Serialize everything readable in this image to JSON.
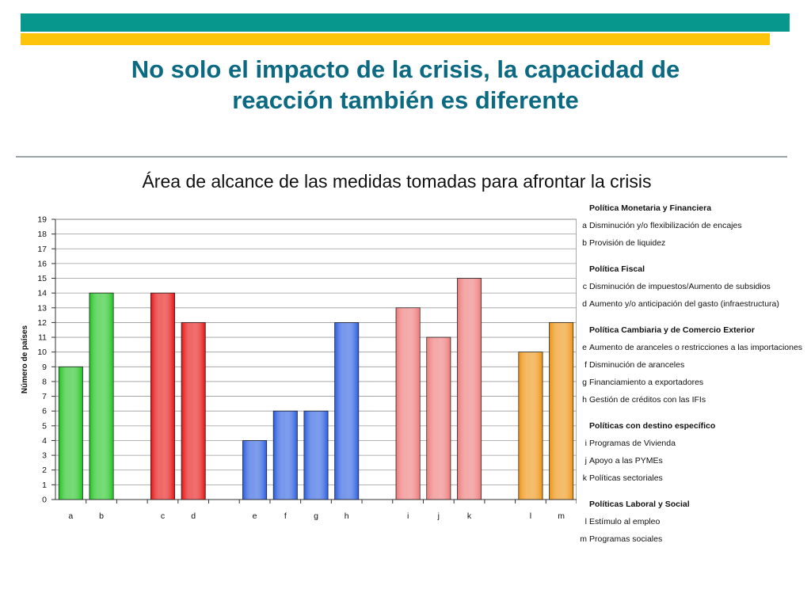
{
  "slide_title": "No solo el impacto de la crisis, la capacidad de reacción también es diferente",
  "chart_data": {
    "type": "bar",
    "title": "Área de alcance de las medidas tomadas para afrontar la crisis",
    "ylabel": "Número de países",
    "xlabel": "",
    "ylim": [
      0,
      19
    ],
    "yticks": [
      "0",
      "1",
      "2",
      "3",
      "4",
      "5",
      "6",
      "7",
      "8",
      "9",
      "10",
      "11",
      "12",
      "13",
      "14",
      "15",
      "16",
      "17",
      "18",
      "19"
    ],
    "grid": true,
    "categories": [
      "a",
      "b",
      "",
      "c",
      "d",
      "",
      "e",
      "f",
      "g",
      "h",
      "",
      "i",
      "j",
      "k",
      "",
      "l",
      "m"
    ],
    "values": [
      9,
      14,
      null,
      14,
      12,
      null,
      4,
      6,
      6,
      12,
      null,
      13,
      11,
      15,
      null,
      10,
      12
    ],
    "bar_colors": [
      "#22c422",
      "#22c422",
      null,
      "#e61414",
      "#e61414",
      null,
      "#2c5fe0",
      "#2c5fe0",
      "#2c5fe0",
      "#2c5fe0",
      null,
      "#ee7a7a",
      "#ee7a7a",
      "#ee7a7a",
      null,
      "#ee9412",
      "#ee9412"
    ],
    "legend_placement": "right",
    "legend_groups": [
      {
        "title": "Política Monetaria y Financiera",
        "items": [
          {
            "key": "a",
            "label": "Disminución y/o flexibilización de encajes"
          },
          {
            "key": "b",
            "label": "Provisión de liquidez"
          }
        ]
      },
      {
        "title": "Política Fiscal",
        "items": [
          {
            "key": "c",
            "label": "Disminución de impuestos/Aumento de subsidios"
          },
          {
            "key": "d",
            "label": "Aumento y/o anticipación del gasto (infraestructura)"
          }
        ]
      },
      {
        "title": "Política Cambiaria y de Comercio Exterior",
        "items": [
          {
            "key": "e",
            "label": "Aumento de aranceles o restricciones a las importaciones"
          },
          {
            "key": "f",
            "label": "Disminución de aranceles"
          },
          {
            "key": "g",
            "label": "Financiamiento a exportadores"
          },
          {
            "key": "h",
            "label": "Gestión de créditos con las IFIs"
          }
        ]
      },
      {
        "title": "Políticas con destino específico",
        "items": [
          {
            "key": "i",
            "label": "Programas de Vivienda"
          },
          {
            "key": "j",
            "label": "Apoyo a las PYMEs"
          },
          {
            "key": "k",
            "label": "Políticas sectoriales"
          }
        ]
      },
      {
        "title": "Políticas Laboral y Social",
        "items": [
          {
            "key": "l",
            "label": "Estímulo al empleo"
          },
          {
            "key": "m",
            "label": "Programas sociales"
          }
        ]
      }
    ]
  }
}
